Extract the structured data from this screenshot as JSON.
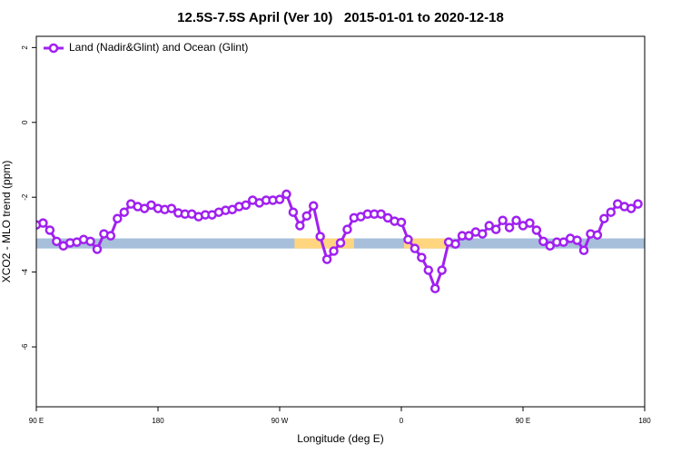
{
  "chart_data": {
    "type": "line",
    "title": "12.5S-7.5S April (Ver 10)   2015-01-01 to 2020-12-18",
    "x_label": "Longitude (deg E)",
    "y_label": "XCO2 - MLO trend (ppm)",
    "xlim": [
      90,
      540
    ],
    "ylim": [
      -7.6,
      2.3
    ],
    "xticks": [
      {
        "value": 90,
        "label": "90 E"
      },
      180,
      {
        "value": 270,
        "label": "90 W"
      },
      {
        "value": 360,
        "label": "0"
      },
      {
        "value": 450,
        "label": "90 E"
      },
      {
        "value": 540,
        "label": "180"
      }
    ],
    "yticks": [
      2,
      0,
      -2,
      -4,
      -6
    ],
    "legend": "top-left",
    "surface_band": {
      "y": [
        -3.37,
        -3.1
      ],
      "ocean_color": "#a7bfdb",
      "land_color": "#ffd67f",
      "land": [
        [
          281,
          325
        ],
        [
          362,
          396
        ]
      ]
    },
    "x": [
      90,
      95,
      100,
      105,
      110,
      115,
      120,
      125,
      130,
      135,
      140,
      145,
      150,
      155,
      160,
      165,
      170,
      175,
      180,
      185,
      190,
      195,
      200,
      205,
      210,
      215,
      220,
      225,
      230,
      235,
      240,
      245,
      250,
      255,
      260,
      265,
      270,
      275,
      280,
      285,
      290,
      295,
      300,
      305,
      310,
      315,
      320,
      325,
      330,
      335,
      340,
      345,
      350,
      355,
      360,
      365,
      370,
      375,
      380,
      385,
      390,
      395,
      400,
      405,
      410,
      415,
      420,
      425,
      430,
      435,
      440,
      445,
      450,
      455,
      460,
      465,
      470,
      475,
      480,
      485,
      490,
      495,
      500,
      505,
      510,
      515,
      520,
      525,
      530,
      535
    ],
    "series": [
      {
        "name": "Land (Nadir&Glint) and Ocean (Glint)",
        "color": "#a020f0",
        "values": [
          -2.74,
          -2.69,
          -2.88,
          -3.18,
          -3.3,
          -3.22,
          -3.2,
          -3.13,
          -3.18,
          -3.39,
          -2.98,
          -3.03,
          -2.57,
          -2.4,
          -2.18,
          -2.25,
          -2.3,
          -2.21,
          -2.3,
          -2.33,
          -2.3,
          -2.42,
          -2.45,
          -2.45,
          -2.52,
          -2.47,
          -2.47,
          -2.4,
          -2.35,
          -2.33,
          -2.25,
          -2.21,
          -2.08,
          -2.15,
          -2.08,
          -2.08,
          -2.06,
          -1.92,
          -2.4,
          -2.76,
          -2.5,
          -2.23,
          -3.05,
          -3.66,
          -3.44,
          -3.22,
          -2.86,
          -2.55,
          -2.52,
          -2.45,
          -2.45,
          -2.45,
          -2.55,
          -2.64,
          -2.67,
          -3.13,
          -3.37,
          -3.61,
          -3.95,
          -4.44,
          -3.95,
          -3.2,
          -3.25,
          -3.03,
          -3.03,
          -2.93,
          -2.98,
          -2.76,
          -2.86,
          -2.62,
          -2.81,
          -2.62,
          -2.76,
          -2.69,
          -2.88,
          -3.18,
          -3.3,
          -3.2,
          -3.2,
          -3.1,
          -3.15,
          -3.42,
          -2.98,
          -3.01,
          -2.57,
          -2.4,
          -2.18,
          -2.25,
          -2.3,
          -2.18
        ]
      }
    ]
  }
}
